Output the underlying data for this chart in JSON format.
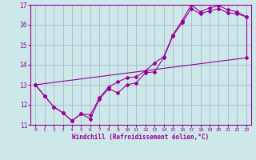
{
  "xlabel": "Windchill (Refroidissement éolien,°C)",
  "bg_color": "#cce8e8",
  "grid_color": "#aaaacc",
  "line_color": "#990099",
  "xlim": [
    -0.5,
    23.5
  ],
  "ylim": [
    11,
    17
  ],
  "xticks": [
    0,
    1,
    2,
    3,
    4,
    5,
    6,
    7,
    8,
    9,
    10,
    11,
    12,
    13,
    14,
    15,
    16,
    17,
    18,
    19,
    20,
    21,
    22,
    23
  ],
  "yticks": [
    11,
    12,
    13,
    14,
    15,
    16,
    17
  ],
  "line1_x": [
    0,
    1,
    2,
    3,
    4,
    5,
    6,
    7,
    8,
    9,
    10,
    11,
    12,
    13,
    14,
    15,
    16,
    17,
    18,
    19,
    20,
    21,
    22,
    23
  ],
  "line1_y": [
    13.0,
    12.45,
    11.9,
    11.6,
    11.2,
    11.55,
    11.3,
    12.3,
    12.8,
    12.6,
    13.0,
    13.1,
    13.6,
    13.65,
    14.35,
    15.45,
    16.1,
    16.8,
    16.55,
    16.7,
    16.8,
    16.6,
    16.55,
    16.4
  ],
  "line2_x": [
    0,
    1,
    2,
    3,
    4,
    5,
    6,
    7,
    8,
    9,
    10,
    11,
    12,
    13,
    14,
    15,
    16,
    17,
    18,
    19,
    20,
    21,
    22,
    23
  ],
  "line2_y": [
    13.0,
    12.45,
    11.9,
    11.6,
    11.2,
    11.55,
    11.5,
    12.35,
    12.9,
    13.15,
    13.35,
    13.4,
    13.7,
    14.1,
    14.4,
    15.5,
    16.2,
    17.0,
    16.65,
    16.85,
    16.95,
    16.75,
    16.65,
    16.4
  ],
  "line3_x": [
    0,
    23
  ],
  "line3_y": [
    13.0,
    14.35
  ],
  "line4_x": [
    23,
    23
  ],
  "line4_y": [
    14.35,
    16.4
  ]
}
